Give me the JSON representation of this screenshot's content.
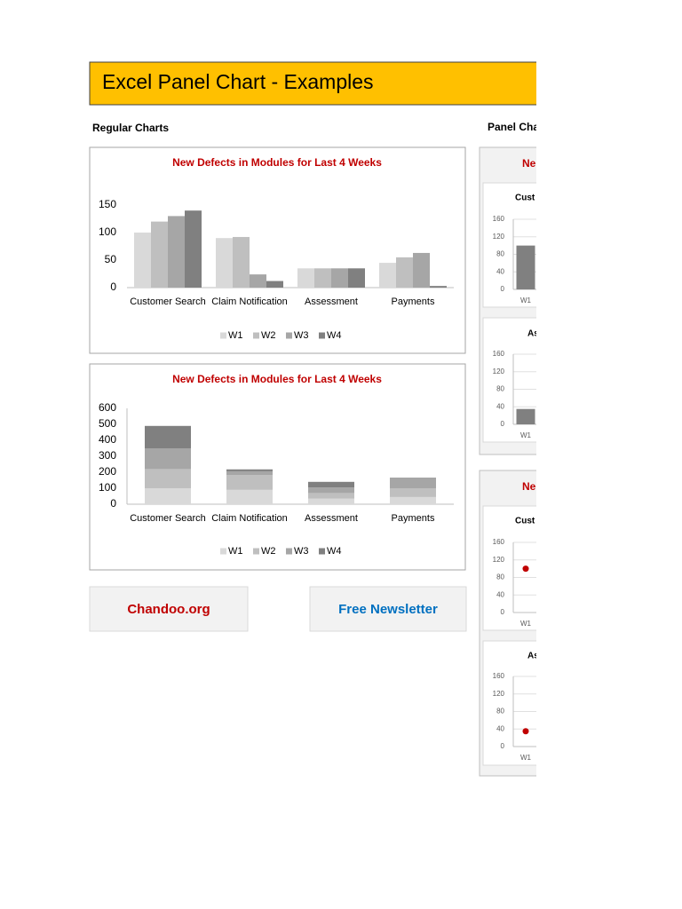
{
  "header": {
    "title": "Excel Panel Chart - Examples"
  },
  "sections": {
    "regular": "Regular Charts",
    "panel": "Panel Cha"
  },
  "panel_groups": [
    "Ne",
    "Ne"
  ],
  "links": {
    "chandoo": "Chandoo.org",
    "newsletter": "Free Newsletter"
  },
  "chart_data": [
    {
      "type": "bar",
      "title": "New Defects in Modules for Last 4 Weeks",
      "categories": [
        "Customer Search",
        "Claim Notification",
        "Assessment",
        "Payments"
      ],
      "series": [
        {
          "name": "W1",
          "color": "#d9d9d9",
          "values": [
            100,
            90,
            35,
            45
          ]
        },
        {
          "name": "W2",
          "color": "#bfbfbf",
          "values": [
            120,
            92,
            35,
            55
          ]
        },
        {
          "name": "W3",
          "color": "#a6a6a6",
          "values": [
            130,
            24,
            35,
            63
          ]
        },
        {
          "name": "W4",
          "color": "#808080",
          "values": [
            140,
            12,
            35,
            3
          ]
        }
      ],
      "ylim": [
        0,
        150
      ],
      "yticks": [
        0,
        50,
        100,
        150
      ],
      "legend": "bottom"
    },
    {
      "type": "stacked_bar",
      "title": "New Defects in Modules for Last 4 Weeks",
      "categories": [
        "Customer Search",
        "Claim Notification",
        "Assessment",
        "Payments"
      ],
      "series": [
        {
          "name": "W1",
          "color": "#d9d9d9",
          "values": [
            100,
            90,
            35,
            45
          ]
        },
        {
          "name": "W2",
          "color": "#bfbfbf",
          "values": [
            120,
            92,
            35,
            55
          ]
        },
        {
          "name": "W3",
          "color": "#a6a6a6",
          "values": [
            130,
            24,
            35,
            63
          ]
        },
        {
          "name": "W4",
          "color": "#808080",
          "values": [
            140,
            12,
            35,
            3
          ]
        }
      ],
      "ylim": [
        0,
        600
      ],
      "yticks": [
        0,
        100,
        200,
        300,
        400,
        500,
        600
      ],
      "legend": "bottom"
    },
    {
      "type": "bar",
      "title": "Cust",
      "categories": [
        "W1"
      ],
      "values": [
        100
      ],
      "color": "#808080",
      "ylim": [
        0,
        160
      ],
      "yticks": [
        0,
        40,
        80,
        120,
        160
      ],
      "grid": true
    },
    {
      "type": "bar",
      "title": "As",
      "categories": [
        "W1"
      ],
      "values": [
        35
      ],
      "color": "#808080",
      "ylim": [
        0,
        160
      ],
      "yticks": [
        0,
        40,
        80,
        120,
        160
      ],
      "grid": true
    },
    {
      "type": "line",
      "title": "Cust",
      "categories": [
        "W1"
      ],
      "values": [
        100
      ],
      "color": "#c00000",
      "ylim": [
        0,
        160
      ],
      "yticks": [
        0,
        40,
        80,
        120,
        160
      ],
      "grid": true
    },
    {
      "type": "line",
      "title": "As",
      "categories": [
        "W1"
      ],
      "values": [
        35
      ],
      "color": "#c00000",
      "ylim": [
        0,
        160
      ],
      "yticks": [
        0,
        40,
        80,
        120,
        160
      ],
      "grid": true
    }
  ]
}
